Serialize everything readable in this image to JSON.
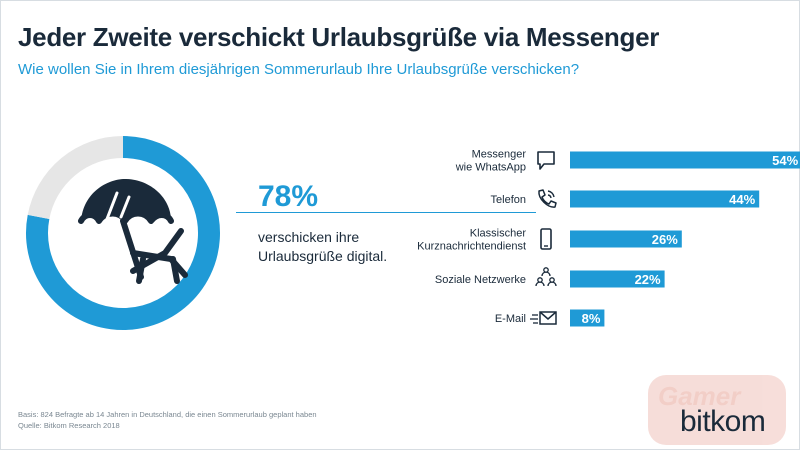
{
  "title": "Jeder Zweite verschickt Urlaubsgrüße via Messenger",
  "subtitle": "Wie wollen Sie in Ihrem diesjährigen Sommerurlaub Ihre Urlaubsgrüße verschicken?",
  "highlight": {
    "value": "78%",
    "text": "verschicken ihre Urlaubsgrüße digital.",
    "percent": 78,
    "icon": "beach-umbrella-deckchair-icon"
  },
  "colors": {
    "accent": "#1f9ad6",
    "remainder": "#e6e6e6",
    "text": "#1a2a3a"
  },
  "chart_data": [
    {
      "type": "pie",
      "title": "",
      "labels": [
        "verschicken ihre Urlaubsgrüße digital",
        ""
      ],
      "values": [
        78,
        22
      ]
    },
    {
      "type": "bar",
      "orientation": "horizontal",
      "title": "",
      "xlim": [
        0,
        100
      ],
      "categories": [
        {
          "lines": [
            "Messenger",
            "wie WhatsApp"
          ],
          "icon": "chat-bubble-icon"
        },
        {
          "lines": [
            "Telefon"
          ],
          "icon": "phone-icon"
        },
        {
          "lines": [
            "Klassischer",
            "Kurznachrichtendienst"
          ],
          "icon": "mobile-phone-icon"
        },
        {
          "lines": [
            "Soziale Netzwerke"
          ],
          "icon": "social-network-icon"
        },
        {
          "lines": [
            "E-Mail"
          ],
          "icon": "envelope-icon"
        }
      ],
      "values": [
        54,
        44,
        26,
        22,
        8
      ],
      "value_labels": [
        "54%",
        "44%",
        "26%",
        "22%",
        "8%"
      ]
    }
  ],
  "footnote": {
    "basis": "Basis: 824 Befragte ab 14 Jahren in Deutschland, die einen Sommerurlaub geplant haben",
    "source": "Quelle: Bitkom Research 2018"
  },
  "watermark": "Gamer",
  "logo": "bitkom"
}
